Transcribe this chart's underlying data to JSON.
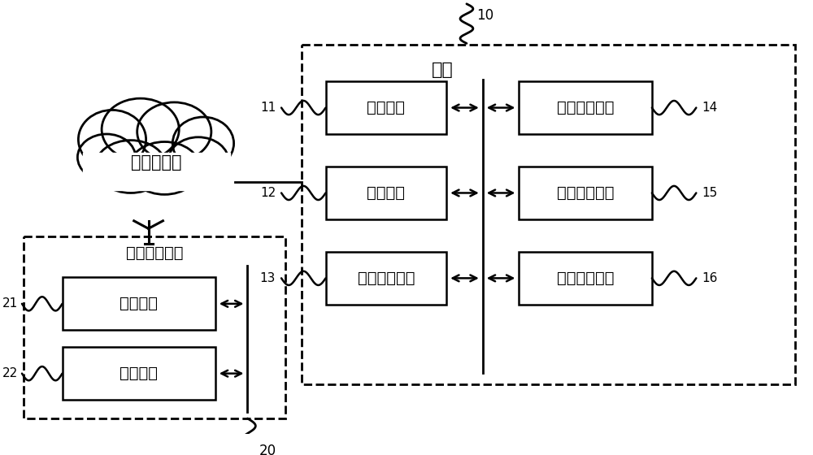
{
  "background_color": "#ffffff",
  "base_station_label": "基站",
  "cloud_label": "无线通信网",
  "terminal_label": "监听用户终端",
  "modules_left": [
    "寻呼模块",
    "命令模块",
    "群组建立模块"
  ],
  "modules_left_nums": [
    "11",
    "12",
    "13"
  ],
  "modules_right": [
    "第一设定模块",
    "切换检测模块",
    "第二设定模块"
  ],
  "modules_right_nums": [
    "14",
    "15",
    "16"
  ],
  "terminal_modules": [
    "加入模块",
    "激活模块"
  ],
  "terminal_nums": [
    "21",
    "22"
  ],
  "label_10": "10",
  "label_20": "20"
}
